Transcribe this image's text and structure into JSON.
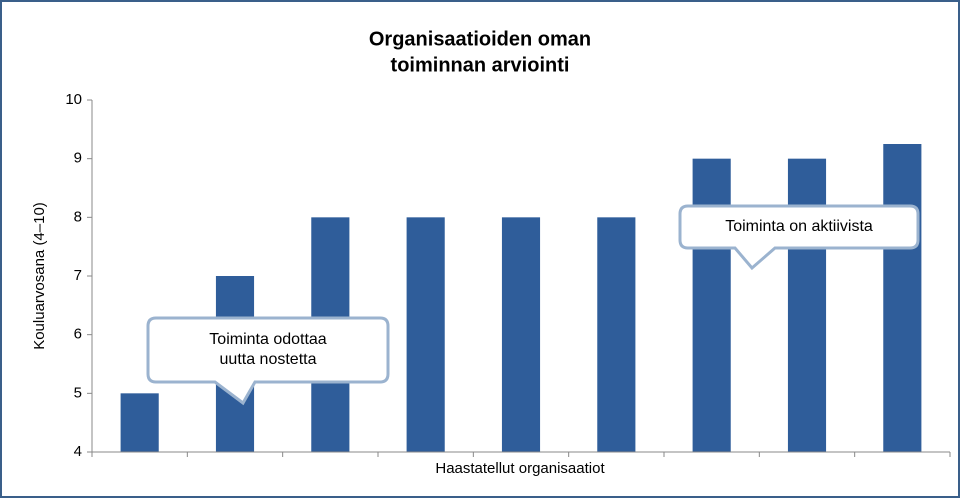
{
  "chart_data": {
    "type": "bar",
    "title": [
      "Organisaatioiden oman",
      "toiminnan arviointi"
    ],
    "y_label": "Kouluarvosana (4–10)",
    "x_label": "Haastatellut organisaatiot",
    "categories": [
      null,
      null,
      null,
      null,
      null,
      null,
      null,
      null,
      null
    ],
    "values": [
      5,
      7,
      8,
      8,
      8,
      8,
      9,
      9,
      9.25
    ],
    "color": "#2f5d9a",
    "ylim": [
      4,
      10
    ],
    "yticks": [
      4,
      5,
      6,
      7,
      8,
      9,
      10
    ],
    "grid": false,
    "annotations": [
      {
        "text": [
          "Toiminta odottaa",
          "uutta nostetta"
        ]
      },
      {
        "text": [
          "Toiminta on aktiivista"
        ]
      }
    ]
  }
}
